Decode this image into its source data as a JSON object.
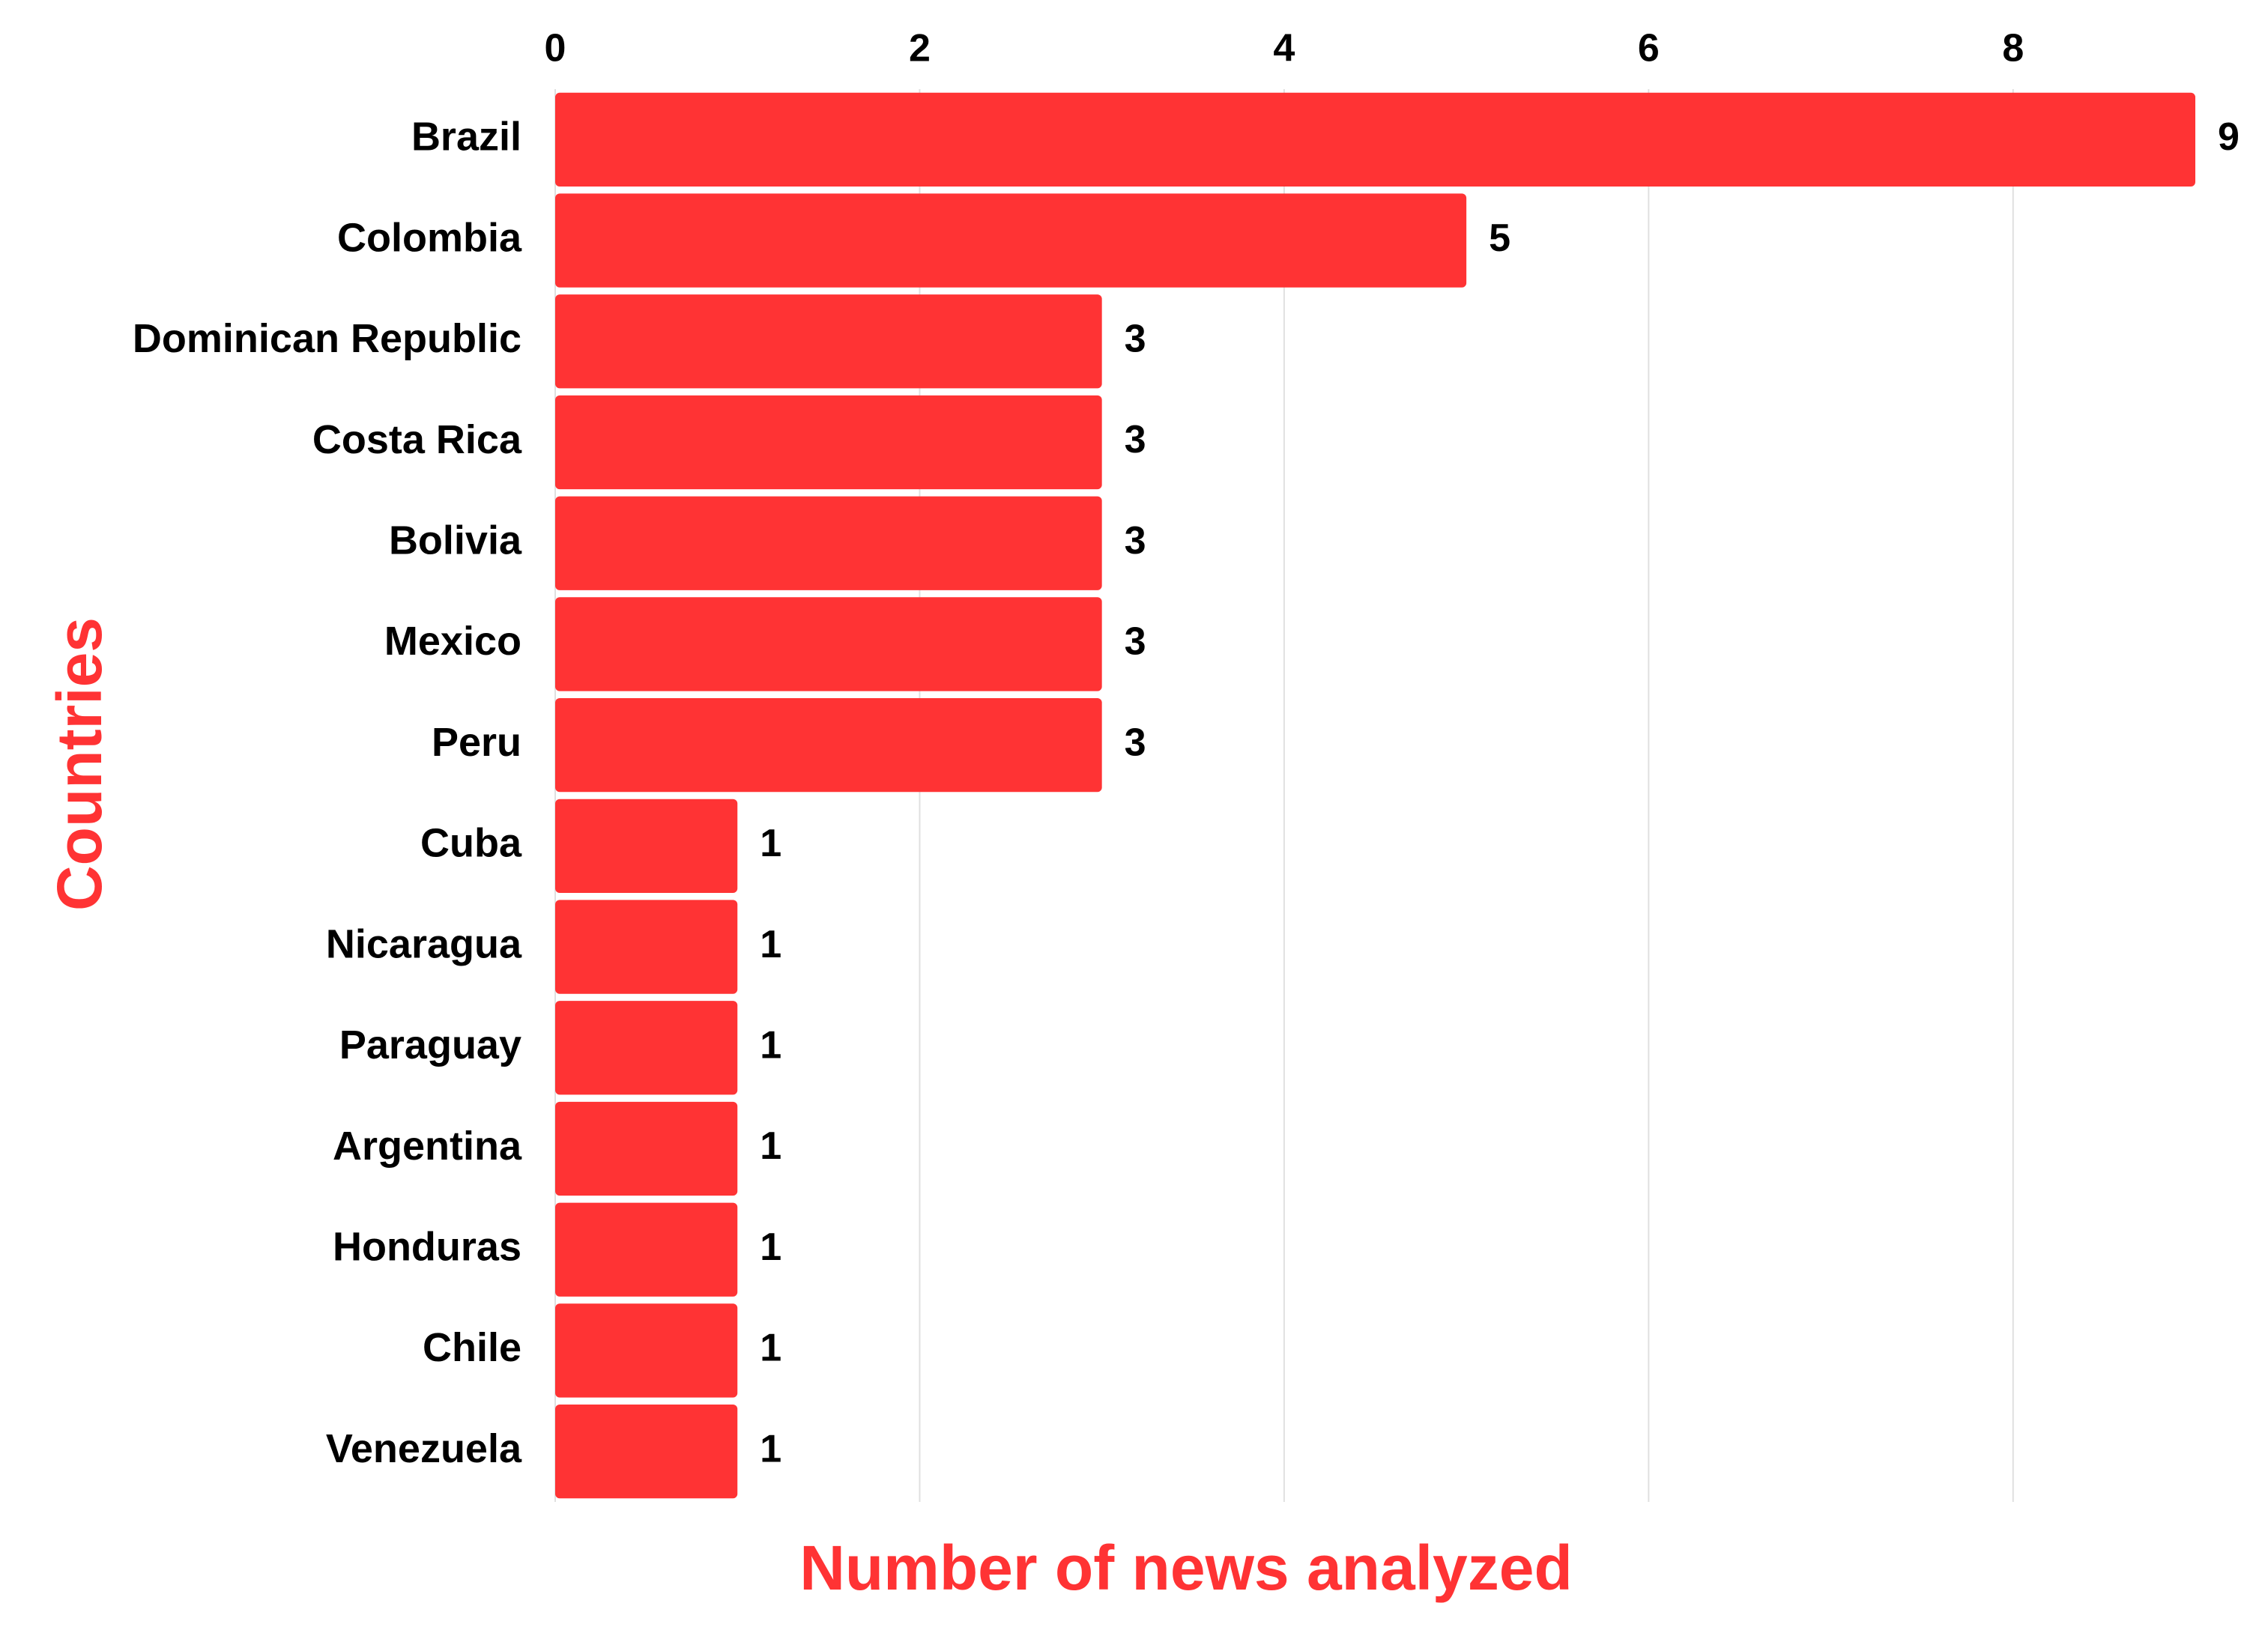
{
  "chart_data": {
    "type": "bar",
    "orientation": "horizontal",
    "x_label": "Number of news analyzed",
    "y_label": "Countries",
    "categories": [
      "Brazil",
      "Colombia",
      "Dominican Republic",
      "Costa Rica",
      "Bolivia",
      "Mexico",
      "Peru",
      "Cuba",
      "Nicaragua",
      "Paraguay",
      "Argentina",
      "Honduras",
      "Chile",
      "Venezuela"
    ],
    "values": [
      9,
      5,
      3,
      3,
      3,
      3,
      3,
      1,
      1,
      1,
      1,
      1,
      1,
      1
    ],
    "color": "#ff3334",
    "xlim": [
      0,
      9
    ],
    "xticks": [
      0,
      2,
      4,
      6,
      8
    ],
    "grid": true
  }
}
